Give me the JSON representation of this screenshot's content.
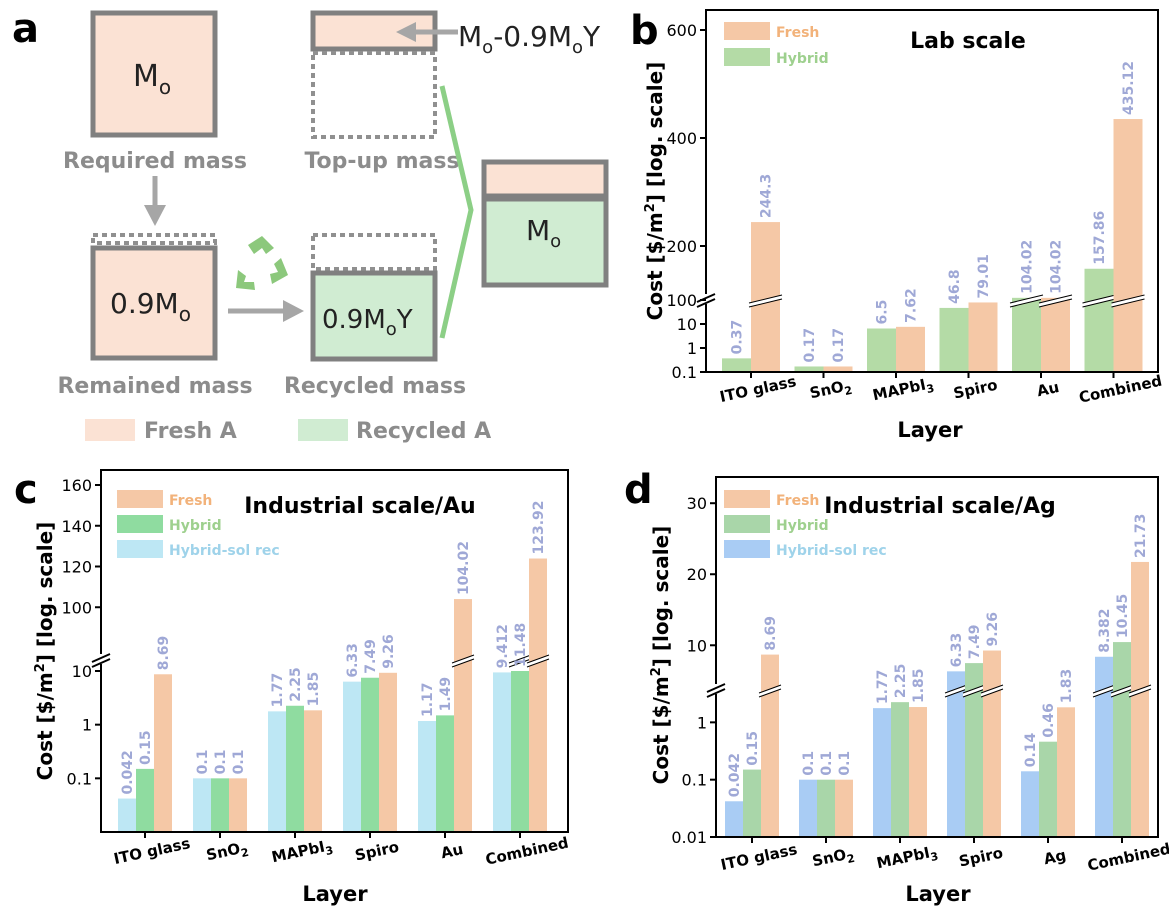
{
  "colors": {
    "fresh": "#f5c8a6",
    "fresh_fill_a": "#fbe2d4",
    "hybrid_b": "#b4dba6",
    "hybrid_c": "#8fdca0",
    "hybrid_d": "#a9d6a9",
    "hybrid_sol_c": "#bde7f4",
    "hybrid_sol_d": "#a9ccf4",
    "recycled_fill_a": "#d0ecd2",
    "box_border": "#808080",
    "label_gray": "#8c8c8c",
    "value_label": "#9fa8d6",
    "legend_fresh_text": "#f2b27a",
    "legend_hybrid_text": "#9ed08e",
    "legend_sol_text": "#9fd3ea",
    "line_green": "#8ccf86",
    "recycle_icon": "#8cc87c"
  },
  "panel_a": {
    "letter": "a",
    "box_required_text": "M",
    "box_required_sub": "o",
    "required_label": "Required mass",
    "topup_arrow_text": "M",
    "topup_arrow_sub1": "o",
    "topup_arrow_mid": "-0.9M",
    "topup_arrow_sub2": "o",
    "topup_arrow_end": "Y",
    "topup_label": "Top-up mass",
    "remained_text": "0.9M",
    "remained_sub": "o",
    "remained_label": "Remained mass",
    "recycled_text": "0.9M",
    "recycled_sub": "o",
    "recycled_end": "Y",
    "recycled_label": "Recycled mass",
    "combined_text": "M",
    "combined_sub": "o",
    "legend_fresh": "Fresh A",
    "legend_recycled": "Recycled A",
    "icon": "recycle-icon"
  },
  "chart_data": [
    {
      "panel": "b",
      "type": "bar",
      "title": "Lab scale",
      "xlabel": "Layer",
      "ylabel": "Cost [$/m",
      "ylabel_sup": "2",
      "ylabel_end": "] [log. scale]",
      "yscale": "log (broken axis: log 0.1–100, linear 100–600)",
      "categories": [
        "ITO glass",
        "SnO2",
        "MAPbI3",
        "Spiro",
        "Au",
        "Combined"
      ],
      "category_labels": [
        {
          "main": "ITO glass",
          "sub": ""
        },
        {
          "main": "SnO",
          "sub": "2"
        },
        {
          "main": "MAPbI",
          "sub": "3"
        },
        {
          "main": "Spiro",
          "sub": ""
        },
        {
          "main": "Au",
          "sub": ""
        },
        {
          "main": "Combined",
          "sub": ""
        }
      ],
      "ylim": [
        0.1,
        600
      ],
      "lower_ticks": [
        "0.1",
        "1",
        "10",
        "100"
      ],
      "upper_ticks": [
        "200",
        "400",
        "600"
      ],
      "series": [
        {
          "name": "Hybrid",
          "values": [
            0.37,
            0.17,
            6.5,
            46.8,
            104.02,
            157.86
          ],
          "labels": [
            "0.37",
            "0.17",
            "6.5",
            "46.8",
            "104.02",
            "157.86"
          ]
        },
        {
          "name": "Fresh",
          "values": [
            244.3,
            0.17,
            7.62,
            79.01,
            104.02,
            435.12
          ],
          "labels": [
            "244.3",
            "0.17",
            "7.62",
            "79.01",
            "104.02",
            "435.12"
          ]
        }
      ],
      "legend": [
        "Fresh",
        "Hybrid"
      ],
      "legend_position": "top-left"
    },
    {
      "panel": "c",
      "type": "bar",
      "title": "Industrial scale/Au",
      "xlabel": "Layer",
      "ylabel": "Cost [$/m",
      "ylabel_sup": "2",
      "ylabel_end": "] [log. scale]",
      "yscale": "log (broken axis: log 0.01–10, linear 80–160)",
      "categories": [
        "ITO glass",
        "SnO2",
        "MAPbI3",
        "Spiro",
        "Au",
        "Combined"
      ],
      "category_labels": [
        {
          "main": "ITO glass",
          "sub": ""
        },
        {
          "main": "SnO",
          "sub": "2"
        },
        {
          "main": "MAPbI",
          "sub": "3"
        },
        {
          "main": "Spiro",
          "sub": ""
        },
        {
          "main": "Au",
          "sub": ""
        },
        {
          "main": "Combined",
          "sub": ""
        }
      ],
      "ylim": [
        0.01,
        160
      ],
      "lower_ticks": [
        "0.1",
        "1",
        "10"
      ],
      "upper_ticks": [
        "100",
        "120",
        "140",
        "160"
      ],
      "series": [
        {
          "name": "Hybrid-sol rec",
          "values": [
            0.042,
            0.1,
            1.77,
            6.33,
            1.17,
            9.412
          ],
          "labels": [
            "0.042",
            "0.1",
            "1.77",
            "6.33",
            "1.17",
            "9.412"
          ]
        },
        {
          "name": "Hybrid",
          "values": [
            0.15,
            0.1,
            2.25,
            7.49,
            1.49,
            11.48
          ],
          "labels": [
            "0.15",
            "0.1",
            "2.25",
            "7.49",
            "1.49",
            "11.48"
          ]
        },
        {
          "name": "Fresh",
          "values": [
            8.69,
            0.1,
            1.85,
            9.26,
            104.02,
            123.92
          ],
          "labels": [
            "8.69",
            "0.1",
            "1.85",
            "9.26",
            "104.02",
            "123.92"
          ]
        }
      ],
      "legend": [
        "Fresh",
        "Hybrid",
        "Hybrid-sol rec"
      ],
      "legend_position": "top-left"
    },
    {
      "panel": "d",
      "type": "bar",
      "title": "Industrial scale/Ag",
      "xlabel": "Layer",
      "ylabel": "Cost [$/m",
      "ylabel_sup": "2",
      "ylabel_end": "] [log. scale]",
      "yscale": "log (broken axis: log 0.01–3, linear 3–32)",
      "categories": [
        "ITO glass",
        "SnO2",
        "MAPbI3",
        "Spiro",
        "Ag",
        "Combined"
      ],
      "category_labels": [
        {
          "main": "ITO glass",
          "sub": ""
        },
        {
          "main": "SnO",
          "sub": "2"
        },
        {
          "main": "MAPbI",
          "sub": "3"
        },
        {
          "main": "Spiro",
          "sub": ""
        },
        {
          "main": "Ag",
          "sub": ""
        },
        {
          "main": "Combined",
          "sub": ""
        }
      ],
      "ylim": [
        0.01,
        32
      ],
      "lower_ticks": [
        "0.01",
        "0.1",
        "1"
      ],
      "upper_ticks": [
        "10",
        "20",
        "30"
      ],
      "series": [
        {
          "name": "Hybrid-sol rec",
          "values": [
            0.042,
            0.1,
            1.77,
            6.33,
            0.14,
            8.382
          ],
          "labels": [
            "0.042",
            "0.1",
            "1.77",
            "6.33",
            "0.14",
            "8.382"
          ]
        },
        {
          "name": "Hybrid",
          "values": [
            0.15,
            0.1,
            2.25,
            7.49,
            0.46,
            10.45
          ],
          "labels": [
            "0.15",
            "0.1",
            "2.25",
            "7.49",
            "0.46",
            "10.45"
          ]
        },
        {
          "name": "Fresh",
          "values": [
            8.69,
            0.1,
            1.85,
            9.26,
            1.83,
            21.73
          ],
          "labels": [
            "8.69",
            "0.1",
            "1.85",
            "9.26",
            "1.83",
            "21.73"
          ]
        }
      ],
      "legend": [
        "Fresh",
        "Hybrid",
        "Hybrid-sol rec"
      ],
      "legend_position": "top-left"
    }
  ],
  "panel_letters": [
    "b",
    "c",
    "d"
  ]
}
